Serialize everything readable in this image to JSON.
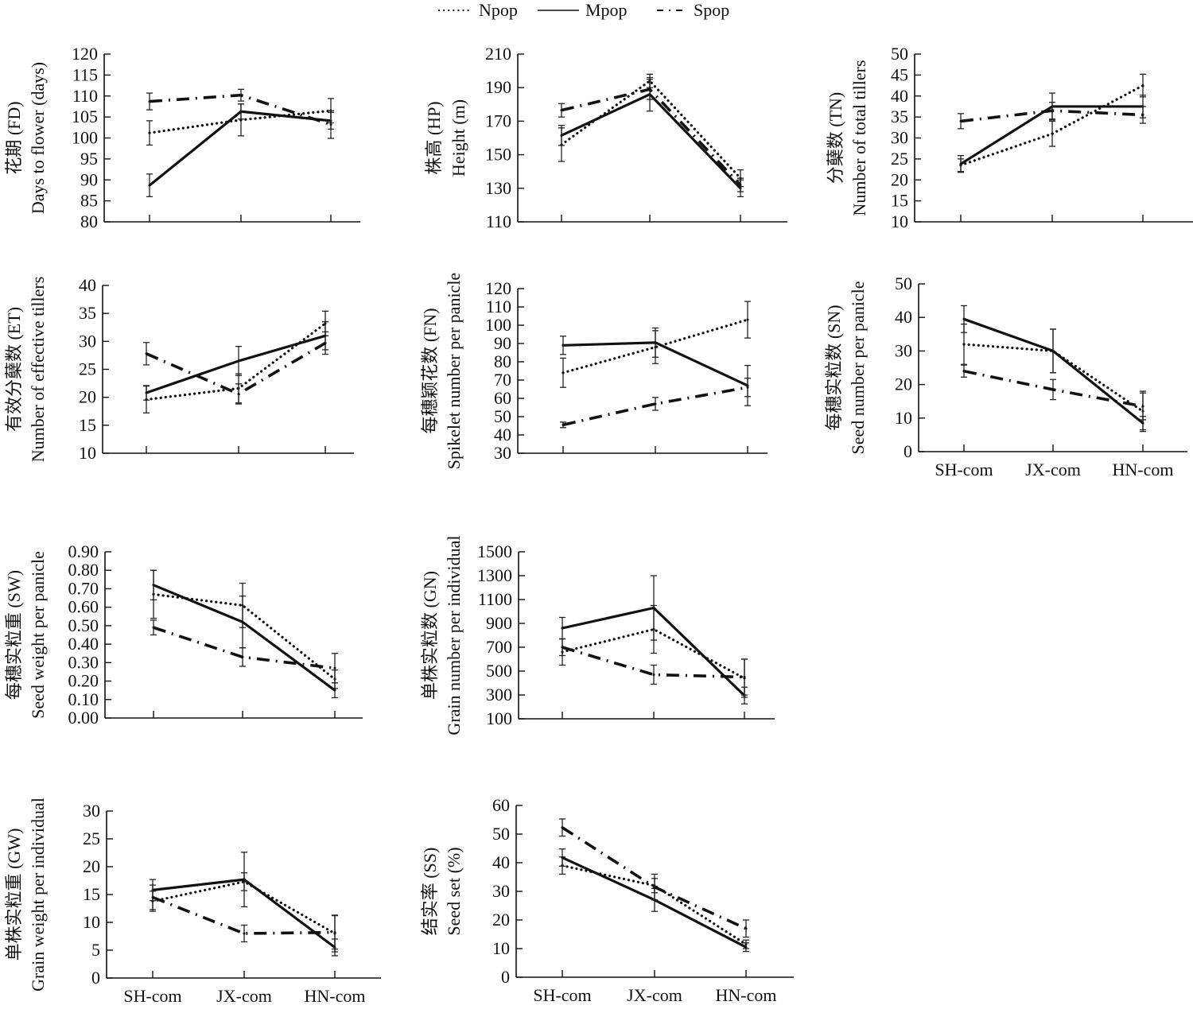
{
  "legend": {
    "items": [
      {
        "name": "Npop",
        "style": "dotted"
      },
      {
        "name": "Mpop",
        "style": "solid"
      },
      {
        "name": "Spop",
        "style": "dashdot"
      }
    ]
  },
  "chart_data": [
    {
      "type": "line",
      "id": "FD",
      "ylabel_cn": "花期 (FD)",
      "ylabel_en": "Days to flower (days)",
      "categories": [
        "SH-com",
        "JX-com",
        "HN-com"
      ],
      "show_category_labels": false,
      "ylim": [
        80,
        120
      ],
      "yticks": [
        80,
        85,
        90,
        95,
        100,
        105,
        110,
        115,
        120
      ],
      "tick_decimals": 0,
      "series": [
        {
          "name": "Npop",
          "style": "dotted",
          "values": [
            101.2,
            104.3,
            106.5
          ],
          "errors": [
            2.9,
            3.8,
            2.9
          ]
        },
        {
          "name": "Mpop",
          "style": "solid",
          "values": [
            88.7,
            106.3,
            104.1
          ],
          "errors": [
            2.7,
            1.8,
            2.0
          ]
        },
        {
          "name": "Spop",
          "style": "dashdot",
          "values": [
            108.7,
            110.2,
            103.2
          ],
          "errors": [
            2.0,
            1.4,
            3.3
          ]
        }
      ]
    },
    {
      "type": "line",
      "id": "HP",
      "ylabel_cn": "株高 (HP)",
      "ylabel_en": "Height (m)",
      "categories": [
        "SH-com",
        "JX-com",
        "HN-com"
      ],
      "show_category_labels": false,
      "ylim": [
        110,
        210
      ],
      "yticks": [
        110,
        130,
        150,
        170,
        190,
        210
      ],
      "tick_decimals": 0,
      "series": [
        {
          "name": "Npop",
          "style": "dotted",
          "values": [
            156,
            194,
            136
          ],
          "errors": [
            10,
            4,
            5
          ]
        },
        {
          "name": "Mpop",
          "style": "solid",
          "values": [
            161.5,
            186,
            130
          ],
          "errors": [
            6,
            10,
            5
          ]
        },
        {
          "name": "Spop",
          "style": "dashdot",
          "values": [
            176.5,
            189,
            132
          ],
          "errors": [
            4,
            6,
            4
          ]
        }
      ]
    },
    {
      "type": "line",
      "id": "TN",
      "ylabel_cn": "分蘖数 (TN)",
      "ylabel_en": "Number of total tillers",
      "categories": [
        "SH-com",
        "JX-com",
        "HN-com"
      ],
      "show_category_labels": false,
      "ylim": [
        10,
        50
      ],
      "yticks": [
        10,
        15,
        20,
        25,
        30,
        35,
        40,
        45,
        50
      ],
      "tick_decimals": 0,
      "series": [
        {
          "name": "Npop",
          "style": "dotted",
          "values": [
            23.5,
            31,
            42.5
          ],
          "errors": [
            1.5,
            3.0,
            2.7
          ]
        },
        {
          "name": "Mpop",
          "style": "solid",
          "values": [
            23.8,
            37.5,
            37.5
          ],
          "errors": [
            2.0,
            3.2,
            2.7
          ]
        },
        {
          "name": "Spop",
          "style": "dashdot",
          "values": [
            34,
            36.5,
            35.5
          ],
          "errors": [
            1.8,
            2.0,
            2.0
          ]
        }
      ]
    },
    {
      "type": "line",
      "id": "ET",
      "ylabel_cn": "有效分蘖数 (ET)",
      "ylabel_en": "Number of effective tillers",
      "categories": [
        "SH-com",
        "JX-com",
        "HN-com"
      ],
      "show_category_labels": false,
      "ylim": [
        10,
        40
      ],
      "yticks": [
        10,
        15,
        20,
        25,
        30,
        35,
        40
      ],
      "tick_decimals": 0,
      "series": [
        {
          "name": "Npop",
          "style": "dotted",
          "values": [
            19.6,
            21.6,
            33.2
          ],
          "errors": [
            2.4,
            2.6,
            2.2
          ]
        },
        {
          "name": "Mpop",
          "style": "solid",
          "values": [
            20.8,
            26.5,
            31
          ],
          "errors": [
            1.3,
            2.6,
            2.5
          ]
        },
        {
          "name": "Spop",
          "style": "dashdot",
          "values": [
            27.8,
            20.6,
            29.7
          ],
          "errors": [
            2.0,
            1.8,
            2.0
          ]
        }
      ]
    },
    {
      "type": "line",
      "id": "FN",
      "ylabel_cn": "每穗颖花数 (FN)",
      "ylabel_en": "Spikelet number per panicle",
      "categories": [
        "SH-com",
        "JX-com",
        "HN-com"
      ],
      "show_category_labels": false,
      "ylim": [
        30,
        120
      ],
      "yticks": [
        30,
        40,
        50,
        60,
        70,
        80,
        90,
        100,
        110,
        120
      ],
      "tick_decimals": 0,
      "series": [
        {
          "name": "Npop",
          "style": "dotted",
          "values": [
            74,
            88,
            103
          ],
          "errors": [
            8,
            9,
            10
          ]
        },
        {
          "name": "Mpop",
          "style": "solid",
          "values": [
            89,
            90.5,
            67
          ],
          "errors": [
            5,
            8,
            11
          ]
        },
        {
          "name": "Spop",
          "style": "dashdot",
          "values": [
            45.5,
            57,
            66
          ],
          "errors": [
            1.5,
            3.5,
            5
          ]
        }
      ]
    },
    {
      "type": "line",
      "id": "SN",
      "ylabel_cn": "每穗实粒数 (SN)",
      "ylabel_en": "Seed number per panicle",
      "categories": [
        "SH-com",
        "JX-com",
        "HN-com"
      ],
      "show_category_labels": true,
      "ylim": [
        0,
        50
      ],
      "yticks": [
        0,
        10,
        20,
        30,
        40,
        50
      ],
      "tick_decimals": 0,
      "series": [
        {
          "name": "Npop",
          "style": "dotted",
          "values": [
            32,
            30,
            12
          ],
          "errors": [
            6,
            6.5,
            6
          ]
        },
        {
          "name": "Mpop",
          "style": "solid",
          "values": [
            39.5,
            30,
            8.5
          ],
          "errors": [
            4,
            6.5,
            2
          ]
        },
        {
          "name": "Spop",
          "style": "dashdot",
          "values": [
            24,
            18.5,
            13.5
          ],
          "errors": [
            1.8,
            3,
            4
          ]
        }
      ]
    },
    {
      "type": "line",
      "id": "SW",
      "ylabel_cn": "每穗实粒重 (SW)",
      "ylabel_en": "Seed weight per panicle",
      "categories": [
        "SH-com",
        "JX-com",
        "HN-com"
      ],
      "show_category_labels": false,
      "ylim": [
        0,
        0.9
      ],
      "yticks": [
        0.0,
        0.1,
        0.2,
        0.3,
        0.4,
        0.5,
        0.6,
        0.7,
        0.8,
        0.9
      ],
      "tick_decimals": 2,
      "series": [
        {
          "name": "Npop",
          "style": "dotted",
          "values": [
            0.67,
            0.61,
            0.21
          ],
          "errors": [
            0.13,
            0.12,
            0.05
          ]
        },
        {
          "name": "Mpop",
          "style": "solid",
          "values": [
            0.72,
            0.52,
            0.15
          ],
          "errors": [
            0.08,
            0.14,
            0.04
          ]
        },
        {
          "name": "Spop",
          "style": "dashdot",
          "values": [
            0.49,
            0.33,
            0.27
          ],
          "errors": [
            0.04,
            0.05,
            0.08
          ]
        }
      ]
    },
    {
      "type": "line",
      "id": "GN",
      "ylabel_cn": "单株实粒数 (GN)",
      "ylabel_en": "Grain number per individual",
      "categories": [
        "SH-com",
        "JX-com",
        "HN-com"
      ],
      "show_category_labels": false,
      "ylim": [
        100,
        1500
      ],
      "yticks": [
        100,
        300,
        500,
        700,
        900,
        1100,
        1300,
        1500
      ],
      "tick_decimals": 0,
      "series": [
        {
          "name": "Npop",
          "style": "dotted",
          "values": [
            660,
            850,
            440
          ],
          "errors": [
            110,
            200,
            160
          ]
        },
        {
          "name": "Mpop",
          "style": "solid",
          "values": [
            860,
            1030,
            295
          ],
          "errors": [
            90,
            270,
            70
          ]
        },
        {
          "name": "Spop",
          "style": "dashdot",
          "values": [
            700,
            470,
            450
          ],
          "errors": [
            70,
            80,
            150
          ]
        }
      ]
    },
    {
      "type": "line",
      "id": "GW",
      "ylabel_cn": "单株实粒重 (GW)",
      "ylabel_en": "Grain weight per individual",
      "categories": [
        "SH-com",
        "JX-com",
        "HN-com"
      ],
      "show_category_labels": true,
      "ylim": [
        0,
        30
      ],
      "yticks": [
        0,
        5,
        10,
        15,
        20,
        25,
        30
      ],
      "tick_decimals": 0,
      "series": [
        {
          "name": "Npop",
          "style": "dotted",
          "values": [
            13.8,
            17.3,
            8
          ],
          "errors": [
            1.8,
            1.6,
            3.3
          ]
        },
        {
          "name": "Mpop",
          "style": "solid",
          "values": [
            15.8,
            17.7,
            5.5
          ],
          "errors": [
            1.9,
            4.9,
            1.5
          ]
        },
        {
          "name": "Spop",
          "style": "dashdot",
          "values": [
            14.5,
            8,
            8.2
          ],
          "errors": [
            2.2,
            1.5,
            3.0
          ]
        }
      ]
    },
    {
      "type": "line",
      "id": "SS",
      "ylabel_cn": "结实率 (SS)",
      "ylabel_en": "Seed set (%)",
      "categories": [
        "SH-com",
        "JX-com",
        "HN-com"
      ],
      "show_category_labels": true,
      "ylim": [
        0,
        60
      ],
      "yticks": [
        0,
        10,
        20,
        30,
        40,
        50,
        60
      ],
      "tick_decimals": 0,
      "series": [
        {
          "name": "Npop",
          "style": "dotted",
          "values": [
            39,
            32,
            11.5
          ],
          "errors": [
            3,
            2.5,
            1.5
          ]
        },
        {
          "name": "Mpop",
          "style": "solid",
          "values": [
            41.8,
            27,
            10.5
          ],
          "errors": [
            3,
            4,
            1.5
          ]
        },
        {
          "name": "Spop",
          "style": "dashdot",
          "values": [
            52.3,
            31.5,
            17
          ],
          "errors": [
            3,
            4.5,
            3
          ]
        }
      ]
    }
  ]
}
